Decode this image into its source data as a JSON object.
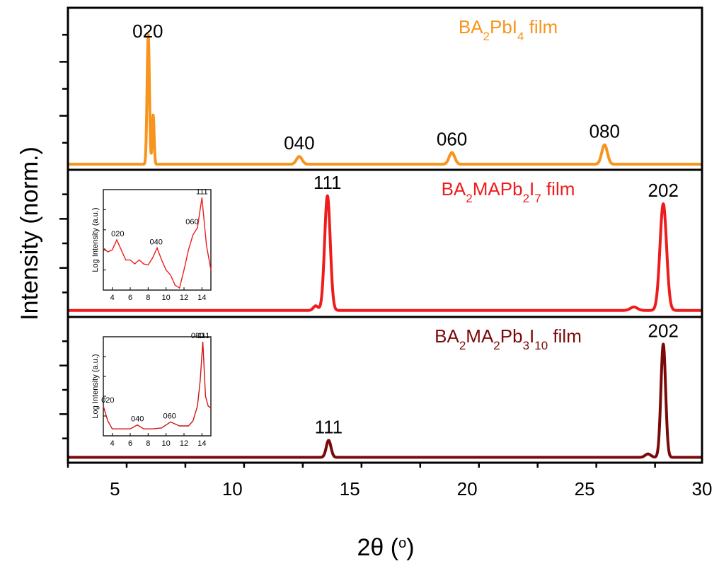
{
  "chart_data": {
    "type": "line",
    "xlabel": "2θ (ᵒ)",
    "ylabel": "Intensity (norm.)",
    "xlim": [
      3,
      30
    ],
    "x_ticks": [
      5,
      10,
      15,
      20,
      25,
      30
    ],
    "grid": false,
    "panels": [
      {
        "series": [
          {
            "name": "BA2PbI4 film",
            "label_parts": [
              [
                "BA",
                ""
              ],
              [
                "2",
                "sub"
              ],
              [
                "PbI",
                ""
              ],
              [
                "4",
                "sub"
              ],
              [
                " film",
                ""
              ]
            ],
            "color": "#F7941D",
            "baseline": 0.01,
            "peaks": [
              {
                "x": 6.42,
                "h": 1.0,
                "w": 0.05
              },
              {
                "x": 6.63,
                "h": 0.38,
                "w": 0.04
              },
              {
                "x": 12.85,
                "h": 0.06,
                "w": 0.12
              },
              {
                "x": 19.35,
                "h": 0.09,
                "w": 0.12
              },
              {
                "x": 25.85,
                "h": 0.15,
                "w": 0.12
              }
            ]
          }
        ],
        "annotations": [
          {
            "text": "020",
            "x": 6.4
          },
          {
            "text": "040",
            "x": 12.85
          },
          {
            "text": "060",
            "x": 19.35
          },
          {
            "text": "080",
            "x": 25.85
          }
        ]
      },
      {
        "series": [
          {
            "name": "BA2MAPb2I7 film",
            "label_parts": [
              [
                "BA",
                ""
              ],
              [
                "2",
                "sub"
              ],
              [
                "MAPb",
                ""
              ],
              [
                "2",
                "sub"
              ],
              [
                "I",
                ""
              ],
              [
                "7",
                "sub"
              ],
              [
                " film",
                ""
              ]
            ],
            "color": "#EE1C1C",
            "baseline": 0.02,
            "peaks": [
              {
                "x": 13.55,
                "h": 0.04,
                "w": 0.1
              },
              {
                "x": 14.05,
                "h": 1.0,
                "w": 0.12
              },
              {
                "x": 27.1,
                "h": 0.03,
                "w": 0.15
              },
              {
                "x": 28.35,
                "h": 0.93,
                "w": 0.14
              }
            ]
          }
        ],
        "annotations": [
          {
            "text": "111",
            "x": 14.05
          },
          {
            "text": "202",
            "x": 28.35
          }
        ],
        "inset": {
          "xlim": [
            3,
            15
          ],
          "x_ticks": [
            4,
            6,
            8,
            10,
            12,
            14
          ],
          "ylabel": "Log Intensity (a.u.)",
          "color": "#EE1C1C",
          "points": [
            [
              3,
              0.42
            ],
            [
              3.5,
              0.38
            ],
            [
              4,
              0.4
            ],
            [
              4.5,
              0.5
            ],
            [
              5,
              0.4
            ],
            [
              5.5,
              0.3
            ],
            [
              6,
              0.3
            ],
            [
              6.5,
              0.26
            ],
            [
              7,
              0.3
            ],
            [
              7.5,
              0.26
            ],
            [
              8,
              0.25
            ],
            [
              8.5,
              0.32
            ],
            [
              9,
              0.42
            ],
            [
              9.5,
              0.3
            ],
            [
              10,
              0.2
            ],
            [
              10.5,
              0.15
            ],
            [
              11,
              0.05
            ],
            [
              11.5,
              0.02
            ],
            [
              12,
              0.2
            ],
            [
              12.5,
              0.4
            ],
            [
              13,
              0.55
            ],
            [
              13.5,
              0.62
            ],
            [
              14,
              0.92
            ],
            [
              14.5,
              0.45
            ],
            [
              15,
              0.2
            ]
          ],
          "labels": [
            {
              "text": "020",
              "x": 4.6
            },
            {
              "text": "040",
              "x": 8.9
            },
            {
              "text": "060",
              "x": 12.9
            },
            {
              "text": "111",
              "x": 14.0
            }
          ]
        }
      },
      {
        "series": [
          {
            "name": "BA2MA2Pb3I10 film",
            "label_parts": [
              [
                "BA",
                ""
              ],
              [
                "2",
                "sub"
              ],
              [
                "MA",
                ""
              ],
              [
                "2",
                "sub"
              ],
              [
                "Pb",
                ""
              ],
              [
                "3",
                "sub"
              ],
              [
                "I",
                ""
              ],
              [
                "10",
                "sub"
              ],
              [
                " film",
                ""
              ]
            ],
            "color": "#7A0A0A",
            "baseline": 0.01,
            "peaks": [
              {
                "x": 14.1,
                "h": 0.15,
                "w": 0.1
              },
              {
                "x": 27.7,
                "h": 0.03,
                "w": 0.12
              },
              {
                "x": 28.35,
                "h": 1.0,
                "w": 0.1
              }
            ]
          }
        ],
        "annotations": [
          {
            "text": "111",
            "x": 14.1
          },
          {
            "text": "202",
            "x": 28.35
          }
        ],
        "inset": {
          "xlim": [
            3,
            15
          ],
          "x_ticks": [
            4,
            6,
            8,
            10,
            12,
            14
          ],
          "ylabel": "Log Intensity (a.u.)",
          "color": "#D01414",
          "points": [
            [
              3,
              0.3
            ],
            [
              3.5,
              0.15
            ],
            [
              4,
              0.07
            ],
            [
              5,
              0.07
            ],
            [
              6,
              0.07
            ],
            [
              6.8,
              0.11
            ],
            [
              7.5,
              0.07
            ],
            [
              8.5,
              0.07
            ],
            [
              9.5,
              0.08
            ],
            [
              10.5,
              0.14
            ],
            [
              11.5,
              0.1
            ],
            [
              12.5,
              0.1
            ],
            [
              13,
              0.15
            ],
            [
              13.5,
              0.3
            ],
            [
              13.8,
              0.55
            ],
            [
              14.1,
              0.95
            ],
            [
              14.4,
              0.4
            ],
            [
              14.7,
              0.3
            ],
            [
              15,
              0.28
            ]
          ],
          "labels": [
            {
              "text": "020",
              "x": 3.5
            },
            {
              "text": "040",
              "x": 6.8
            },
            {
              "text": "060",
              "x": 10.4
            },
            {
              "text": "080",
              "x": 13.5
            },
            {
              "text": "111",
              "x": 14.2
            }
          ]
        }
      }
    ]
  }
}
